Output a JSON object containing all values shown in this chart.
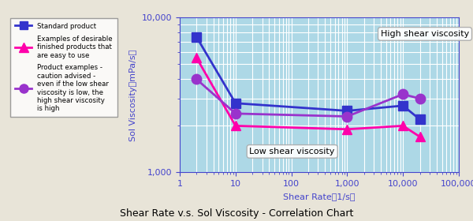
{
  "title": "Shear Rate v.s. Sol Viscosity - Correlation Chart",
  "xlabel": "Shear Rate（1/s）",
  "ylabel": "Sol Viscosity（mPa/s）",
  "background_outer": "#e8e4d8",
  "background_plot": "#add8e6",
  "grid_color": "#ffffff",
  "axis_color": "#4444cc",
  "xlim": [
    1,
    100000
  ],
  "ylim": [
    1000,
    10000
  ],
  "series": {
    "standard": {
      "x": [
        2,
        10,
        1000,
        10000,
        20000
      ],
      "y": [
        7500,
        2800,
        2500,
        2700,
        2200
      ],
      "color": "#3333cc",
      "marker": "s",
      "label": "Standard product",
      "linewidth": 2.0,
      "markersize": 8
    },
    "desirable": {
      "x": [
        2,
        10,
        1000,
        10000,
        20000
      ],
      "y": [
        5500,
        2000,
        1900,
        2000,
        1700
      ],
      "color": "#ff00aa",
      "marker": "^",
      "label": "Examples of desirable\nfinished products that\nare easy to use",
      "linewidth": 2.0,
      "markersize": 9
    },
    "caution": {
      "x": [
        2,
        10,
        1000,
        10000,
        20000
      ],
      "y": [
        4000,
        2400,
        2300,
        3200,
        3000
      ],
      "color": "#9933cc",
      "marker": "o",
      "label": "Product examples -\ncaution advised -\neven if the low shear\nviscosity is low, the\nhigh shear viscosity\nis high",
      "linewidth": 2.0,
      "markersize": 9
    }
  },
  "annotation_high": "High shear viscosity",
  "annotation_low": "Low shear viscosity",
  "title_fontsize": 9,
  "label_fontsize": 8,
  "tick_fontsize": 8
}
